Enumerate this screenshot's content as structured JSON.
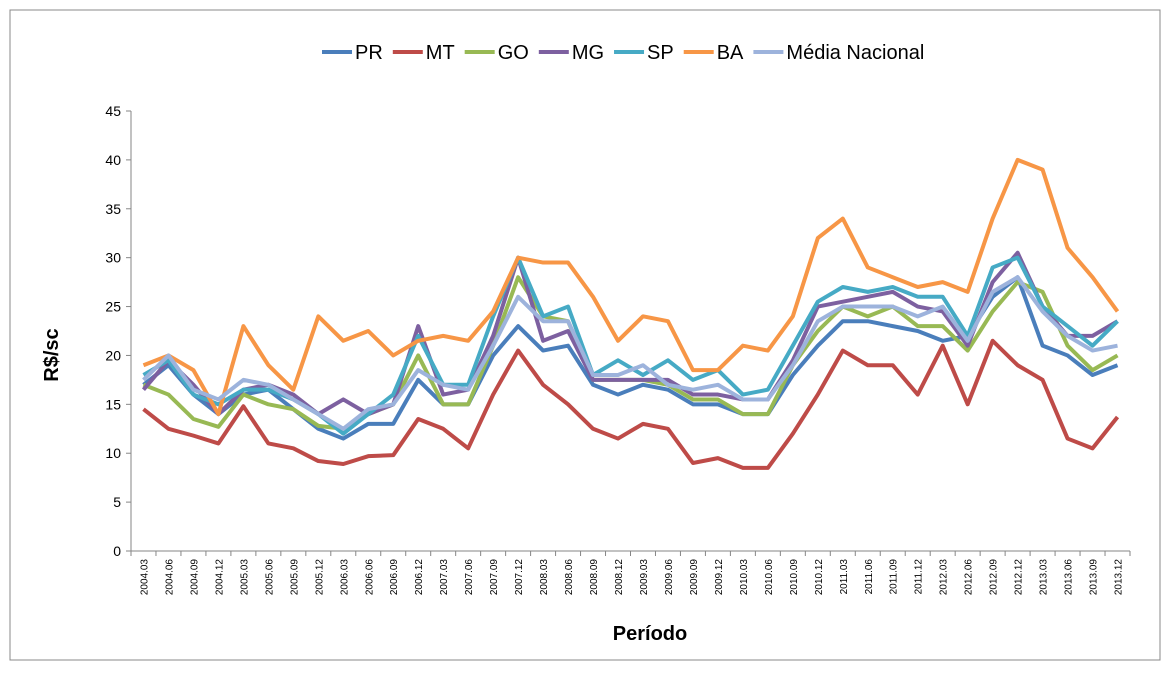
{
  "chart_data": {
    "type": "line",
    "y_label": "R$/sc",
    "x_label": "Período",
    "categories": [
      "2004.03",
      "2004.06",
      "2004.09",
      "2004.12",
      "2005.03",
      "2005.06",
      "2005.09",
      "2005.12",
      "2006.03",
      "2006.06",
      "2006.09",
      "2006.12",
      "2007.03",
      "2007.06",
      "2007.09",
      "2007.12",
      "2008.03",
      "2008.06",
      "2008.09",
      "2008.12",
      "2009.03",
      "2009.06",
      "2009.09",
      "2009.12",
      "2010.03",
      "2010.06",
      "2010.09",
      "2010.12",
      "2011.03",
      "2011.06",
      "2011.09",
      "2011.12",
      "2012.03",
      "2012.06",
      "2012.09",
      "2012.12",
      "2013.03",
      "2013.06",
      "2013.09",
      "2013.12"
    ],
    "series": [
      {
        "name": "PR",
        "color": "#4a7ebb",
        "values": [
          17,
          19,
          16,
          14,
          16,
          16.5,
          14.5,
          12.5,
          11.5,
          13,
          13,
          17.5,
          15,
          15,
          20,
          23,
          20.5,
          21,
          17,
          16,
          17,
          16.5,
          15,
          15,
          14,
          14,
          18,
          21,
          23.5,
          23.5,
          23,
          22.5,
          21.5,
          22,
          26,
          28,
          21,
          20,
          18,
          19
        ]
      },
      {
        "name": "MT",
        "color": "#be4b48",
        "values": [
          14.5,
          12.5,
          11.8,
          11,
          14.8,
          11,
          10.5,
          9.2,
          8.9,
          9.7,
          9.8,
          13.5,
          12.5,
          10.5,
          16,
          20.5,
          17,
          15,
          12.5,
          11.5,
          13,
          12.5,
          9,
          9.5,
          8.5,
          8.5,
          12,
          16,
          20.5,
          19,
          19,
          16,
          21,
          15,
          21.5,
          19,
          17.5,
          11.5,
          10.5,
          13.7
        ]
      },
      {
        "name": "GO",
        "color": "#98b954",
        "values": [
          17,
          16,
          13.5,
          12.7,
          16,
          15,
          14.5,
          12.8,
          12.5,
          14,
          15,
          20,
          15,
          15,
          21,
          28,
          24,
          23.5,
          17.5,
          17.5,
          17.5,
          17,
          15.5,
          15.5,
          14,
          14,
          19,
          22.5,
          25,
          24,
          25,
          23,
          23,
          20.5,
          24.5,
          27.5,
          26.5,
          21,
          18.5,
          20
        ]
      },
      {
        "name": "MG",
        "color": "#7d60a0",
        "values": [
          16.5,
          19.5,
          17,
          14,
          16.5,
          17,
          16,
          14,
          15.5,
          14,
          15,
          23,
          16,
          16.5,
          22,
          30,
          21.5,
          22.5,
          17.5,
          17.5,
          17.5,
          17.5,
          16,
          16,
          15.5,
          15.5,
          19.5,
          25,
          25.5,
          26,
          26.5,
          25,
          24.5,
          21,
          27.5,
          30.5,
          25,
          22,
          22,
          23.5
        ]
      },
      {
        "name": "SP",
        "color": "#46aac5",
        "values": [
          18,
          19.5,
          16,
          15,
          16.5,
          16.5,
          15.5,
          14,
          12,
          14,
          16,
          22,
          17,
          17,
          24,
          30,
          24,
          25,
          18,
          19.5,
          18,
          19.5,
          17.5,
          18.5,
          16,
          16.5,
          21,
          25.5,
          27,
          26.5,
          27,
          26,
          26,
          22,
          29,
          30,
          25,
          23,
          21,
          23.5
        ]
      },
      {
        "name": "BA",
        "color": "#f79646",
        "values": [
          19,
          20,
          18.5,
          14,
          23,
          19,
          16.5,
          24,
          21.5,
          22.5,
          20,
          21.5,
          22,
          21.5,
          24.5,
          30,
          29.5,
          29.5,
          26,
          21.5,
          24,
          23.5,
          18.5,
          18.5,
          21,
          20.5,
          24,
          32,
          34,
          29,
          28,
          27,
          27.5,
          26.5,
          34,
          40,
          39,
          31,
          28,
          24.5
        ]
      },
      {
        "name": "Média Nacional",
        "color": "#9db3dc",
        "values": [
          17.5,
          20,
          16.5,
          15.5,
          17.5,
          17,
          15.5,
          14,
          12.5,
          14.5,
          15,
          18.5,
          17,
          16.5,
          21,
          26,
          23.5,
          23.5,
          18,
          18,
          19,
          17,
          16.5,
          17,
          15.5,
          15.5,
          19,
          23.5,
          25,
          25,
          25,
          24,
          25,
          21.5,
          26.5,
          28,
          24.5,
          22,
          20.5,
          21
        ]
      }
    ],
    "ylim": [
      0,
      45
    ],
    "yticks": [
      0,
      5,
      10,
      15,
      20,
      25,
      30,
      35,
      40,
      45
    ],
    "grid": false,
    "legend": "top"
  }
}
